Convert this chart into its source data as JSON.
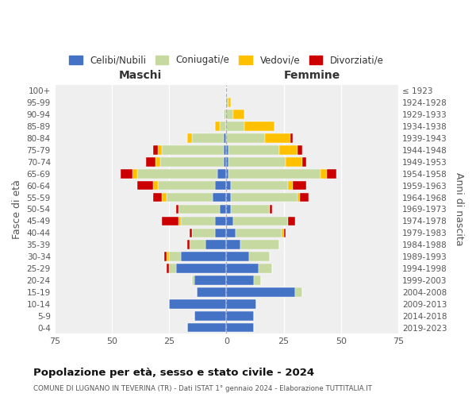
{
  "age_groups": [
    "0-4",
    "5-9",
    "10-14",
    "15-19",
    "20-24",
    "25-29",
    "30-34",
    "35-39",
    "40-44",
    "45-49",
    "50-54",
    "55-59",
    "60-64",
    "65-69",
    "70-74",
    "75-79",
    "80-84",
    "85-89",
    "90-94",
    "95-99",
    "100+"
  ],
  "birth_years": [
    "2019-2023",
    "2014-2018",
    "2009-2013",
    "2004-2008",
    "1999-2003",
    "1994-1998",
    "1989-1993",
    "1984-1988",
    "1979-1983",
    "1974-1978",
    "1969-1973",
    "1964-1968",
    "1959-1963",
    "1954-1958",
    "1949-1953",
    "1944-1948",
    "1939-1943",
    "1934-1938",
    "1929-1933",
    "1924-1928",
    "≤ 1923"
  ],
  "male": {
    "celibi": [
      17,
      14,
      25,
      13,
      14,
      22,
      20,
      9,
      5,
      5,
      3,
      6,
      5,
      4,
      1,
      1,
      1,
      0,
      0,
      0,
      0
    ],
    "coniugati": [
      0,
      0,
      0,
      0,
      1,
      3,
      5,
      7,
      10,
      15,
      18,
      20,
      25,
      35,
      28,
      27,
      14,
      3,
      1,
      0,
      0
    ],
    "vedovi": [
      0,
      0,
      0,
      0,
      0,
      0,
      1,
      0,
      0,
      1,
      0,
      2,
      2,
      2,
      2,
      2,
      2,
      2,
      0,
      0,
      0
    ],
    "divorziati": [
      0,
      0,
      0,
      0,
      0,
      1,
      1,
      1,
      1,
      7,
      1,
      4,
      7,
      5,
      4,
      2,
      0,
      0,
      0,
      0,
      0
    ]
  },
  "female": {
    "nubili": [
      12,
      12,
      13,
      30,
      12,
      14,
      10,
      6,
      4,
      3,
      2,
      2,
      2,
      1,
      1,
      1,
      0,
      0,
      0,
      0,
      0
    ],
    "coniugate": [
      0,
      0,
      0,
      3,
      3,
      6,
      9,
      17,
      20,
      24,
      17,
      29,
      25,
      40,
      25,
      22,
      17,
      8,
      3,
      1,
      0
    ],
    "vedove": [
      0,
      0,
      0,
      0,
      0,
      0,
      0,
      0,
      1,
      0,
      0,
      1,
      2,
      3,
      7,
      8,
      11,
      13,
      5,
      1,
      0
    ],
    "divorziate": [
      0,
      0,
      0,
      0,
      0,
      0,
      0,
      0,
      1,
      3,
      1,
      4,
      6,
      4,
      2,
      2,
      1,
      0,
      0,
      0,
      0
    ]
  },
  "colors": {
    "celibi": "#4472c4",
    "coniugati": "#c5d9a0",
    "vedovi": "#ffc000",
    "divorziati": "#cc0000"
  },
  "title": "Popolazione per età, sesso e stato civile - 2024",
  "subtitle": "COMUNE DI LUGNANO IN TEVERINA (TR) - Dati ISTAT 1° gennaio 2024 - Elaborazione TUTTITALIA.IT",
  "xlabel_left": "Maschi",
  "xlabel_right": "Femmine",
  "ylabel_left": "Fasce di età",
  "ylabel_right": "Anni di nascita",
  "xlim": 75,
  "bg_color": "#ffffff",
  "plot_bg": "#efefef",
  "legend_labels": [
    "Celibi/Nubili",
    "Coniugati/e",
    "Vedovi/e",
    "Divorziati/e"
  ]
}
